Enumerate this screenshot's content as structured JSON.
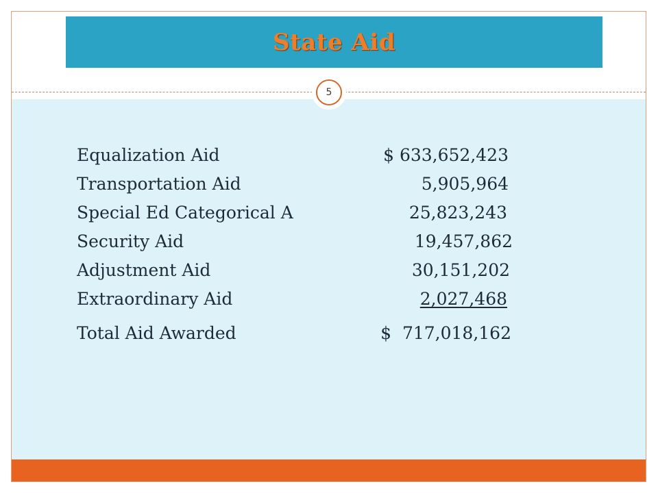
{
  "slide": {
    "title": "State Aid",
    "page_number": "5"
  },
  "aid_items": [
    {
      "label": "Equalization Aid",
      "amount": "$ 633,652,423"
    },
    {
      "label": "Transportation Aid",
      "amount": "5,905,964"
    },
    {
      "label": "Special Ed Categorical A",
      "amount": "25,823,243"
    },
    {
      "label": "Security Aid",
      "amount": "19,457,862"
    },
    {
      "label": "Adjustment Aid",
      "amount": "30,151,202"
    },
    {
      "label": "Extraordinary Aid",
      "amount": "2,027,468"
    }
  ],
  "total": {
    "label": "Total Aid Awarded",
    "amount": "$  717,018,162"
  },
  "colors": {
    "title_bar": "#2aa3c4",
    "title_text": "#ef7e2a",
    "content_bg": "#ddf3f9",
    "footer_bar": "#e8631f",
    "page_ring": "#d06a2a"
  }
}
